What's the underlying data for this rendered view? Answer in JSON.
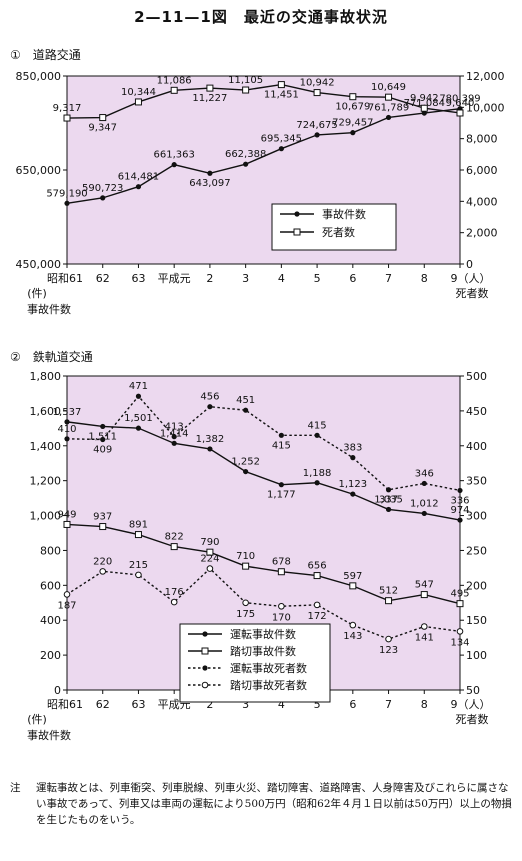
{
  "page": {
    "title": "2—11—1図　最近の交通事故状況",
    "note_label": "注",
    "note_text": "運転事故とは、列車衝突、列車脱線、列車火災、踏切障害、道路障害、人身障害及びこれらに属さない事故であって、列車又は車両の運転により500万円（昭和62年４月１日以前は50万円）以上の物損を生じたものをいう。"
  },
  "colors": {
    "plot_bg": "#ecd9ef",
    "line": "#111111"
  },
  "chart_data": [
    {
      "id": "road",
      "section_label": "①　道路交通",
      "type": "line",
      "categories": [
        "昭和61",
        "62",
        "63",
        "平成元",
        "2",
        "3",
        "4",
        "5",
        "6",
        "7",
        "8",
        "9"
      ],
      "x_unit_label": "（人）",
      "x_sub_label": "(件)",
      "left_axis_label": "事故件数",
      "right_axis_label": "死者数",
      "left_ylim": [
        450000,
        850000
      ],
      "left_ticks": [
        "450,000",
        "650,000",
        "850,000"
      ],
      "right_ylim": [
        0,
        12000
      ],
      "right_ticks": [
        "0",
        "2,000",
        "4,000",
        "6,000",
        "8,000",
        "10,000",
        "12,000"
      ],
      "legend": [
        "事故件数",
        "死者数"
      ],
      "series": [
        {
          "name": "事故件数",
          "axis": "left",
          "marker": "dot",
          "dash": false,
          "values": [
            579190,
            590723,
            614481,
            661363,
            643097,
            662388,
            695345,
            724675,
            729457,
            761789,
            771084,
            780399
          ],
          "labels": [
            "579,190",
            "590,723",
            "614,481",
            "661,363",
            "643,097",
            "662,388",
            "695,345",
            "724,675",
            "729,457",
            "761,789",
            "771,084",
            "780,399"
          ]
        },
        {
          "name": "死者数",
          "axis": "right",
          "marker": "square",
          "dash": false,
          "values": [
            9317,
            9347,
            10344,
            11086,
            11227,
            11105,
            11451,
            10942,
            10679,
            10649,
            9942,
            9640
          ],
          "labels": [
            "9,317",
            "9,347",
            "10,344",
            "11,086",
            "11,227",
            "11,105",
            "11,451",
            "10,942",
            "10,679",
            "10,649",
            "9,942",
            "9,640"
          ]
        }
      ]
    },
    {
      "id": "rail",
      "section_label": "②　鉄軌道交通",
      "type": "line",
      "categories": [
        "昭和61",
        "62",
        "63",
        "平成元",
        "2",
        "3",
        "4",
        "5",
        "6",
        "7",
        "8",
        "9"
      ],
      "x_unit_label": "（人）",
      "x_sub_label": "(件)",
      "left_axis_label": "事故件数",
      "right_axis_label": "死者数",
      "left_ylim": [
        0,
        1800
      ],
      "left_ticks": [
        "0",
        "200",
        "400",
        "600",
        "800",
        "1,000",
        "1,200",
        "1,400",
        "1,600",
        "1,800"
      ],
      "right_ylim": [
        50,
        500
      ],
      "right_ticks": [
        "50",
        "100",
        "150",
        "200",
        "250",
        "300",
        "350",
        "400",
        "450",
        "500"
      ],
      "legend": [
        "運転事故件数",
        "踏切事故件数",
        "運転事故死者数",
        "踏切事故死者数"
      ],
      "series": [
        {
          "name": "運転事故件数",
          "axis": "left",
          "marker": "dot",
          "dash": false,
          "values": [
            1537,
            1511,
            1501,
            1414,
            1382,
            1252,
            1177,
            1188,
            1123,
            1035,
            1012,
            974
          ],
          "labels": [
            "1,537",
            "1,511",
            "1,501",
            "1,414",
            "1,382",
            "1,252",
            "1,177",
            "1,188",
            "1,123",
            "1,035",
            "1,012",
            "974"
          ]
        },
        {
          "name": "踏切事故件数",
          "axis": "left",
          "marker": "square",
          "dash": false,
          "values": [
            949,
            937,
            891,
            822,
            790,
            710,
            678,
            656,
            597,
            512,
            547,
            495
          ],
          "labels": [
            "949",
            "937",
            "891",
            "822",
            "790",
            "710",
            "678",
            "656",
            "597",
            "512",
            "547",
            "495"
          ]
        },
        {
          "name": "運転事故死者数",
          "axis": "right",
          "marker": "dot",
          "dash": true,
          "values": [
            410,
            409,
            471,
            413,
            456,
            451,
            415,
            415,
            383,
            337,
            346,
            336
          ],
          "labels": [
            "410",
            "409",
            "471",
            "413",
            "456",
            "451",
            "415",
            "415",
            "383",
            "337",
            "346",
            "336"
          ]
        },
        {
          "name": "踏切事故死者数",
          "axis": "right",
          "marker": "circle",
          "dash": true,
          "values": [
            187,
            220,
            215,
            176,
            224,
            175,
            170,
            172,
            143,
            123,
            141,
            134
          ],
          "labels": [
            "187",
            "220",
            "215",
            "176",
            "224",
            "175",
            "170",
            "172",
            "143",
            "123",
            "141",
            "134"
          ]
        }
      ]
    }
  ]
}
